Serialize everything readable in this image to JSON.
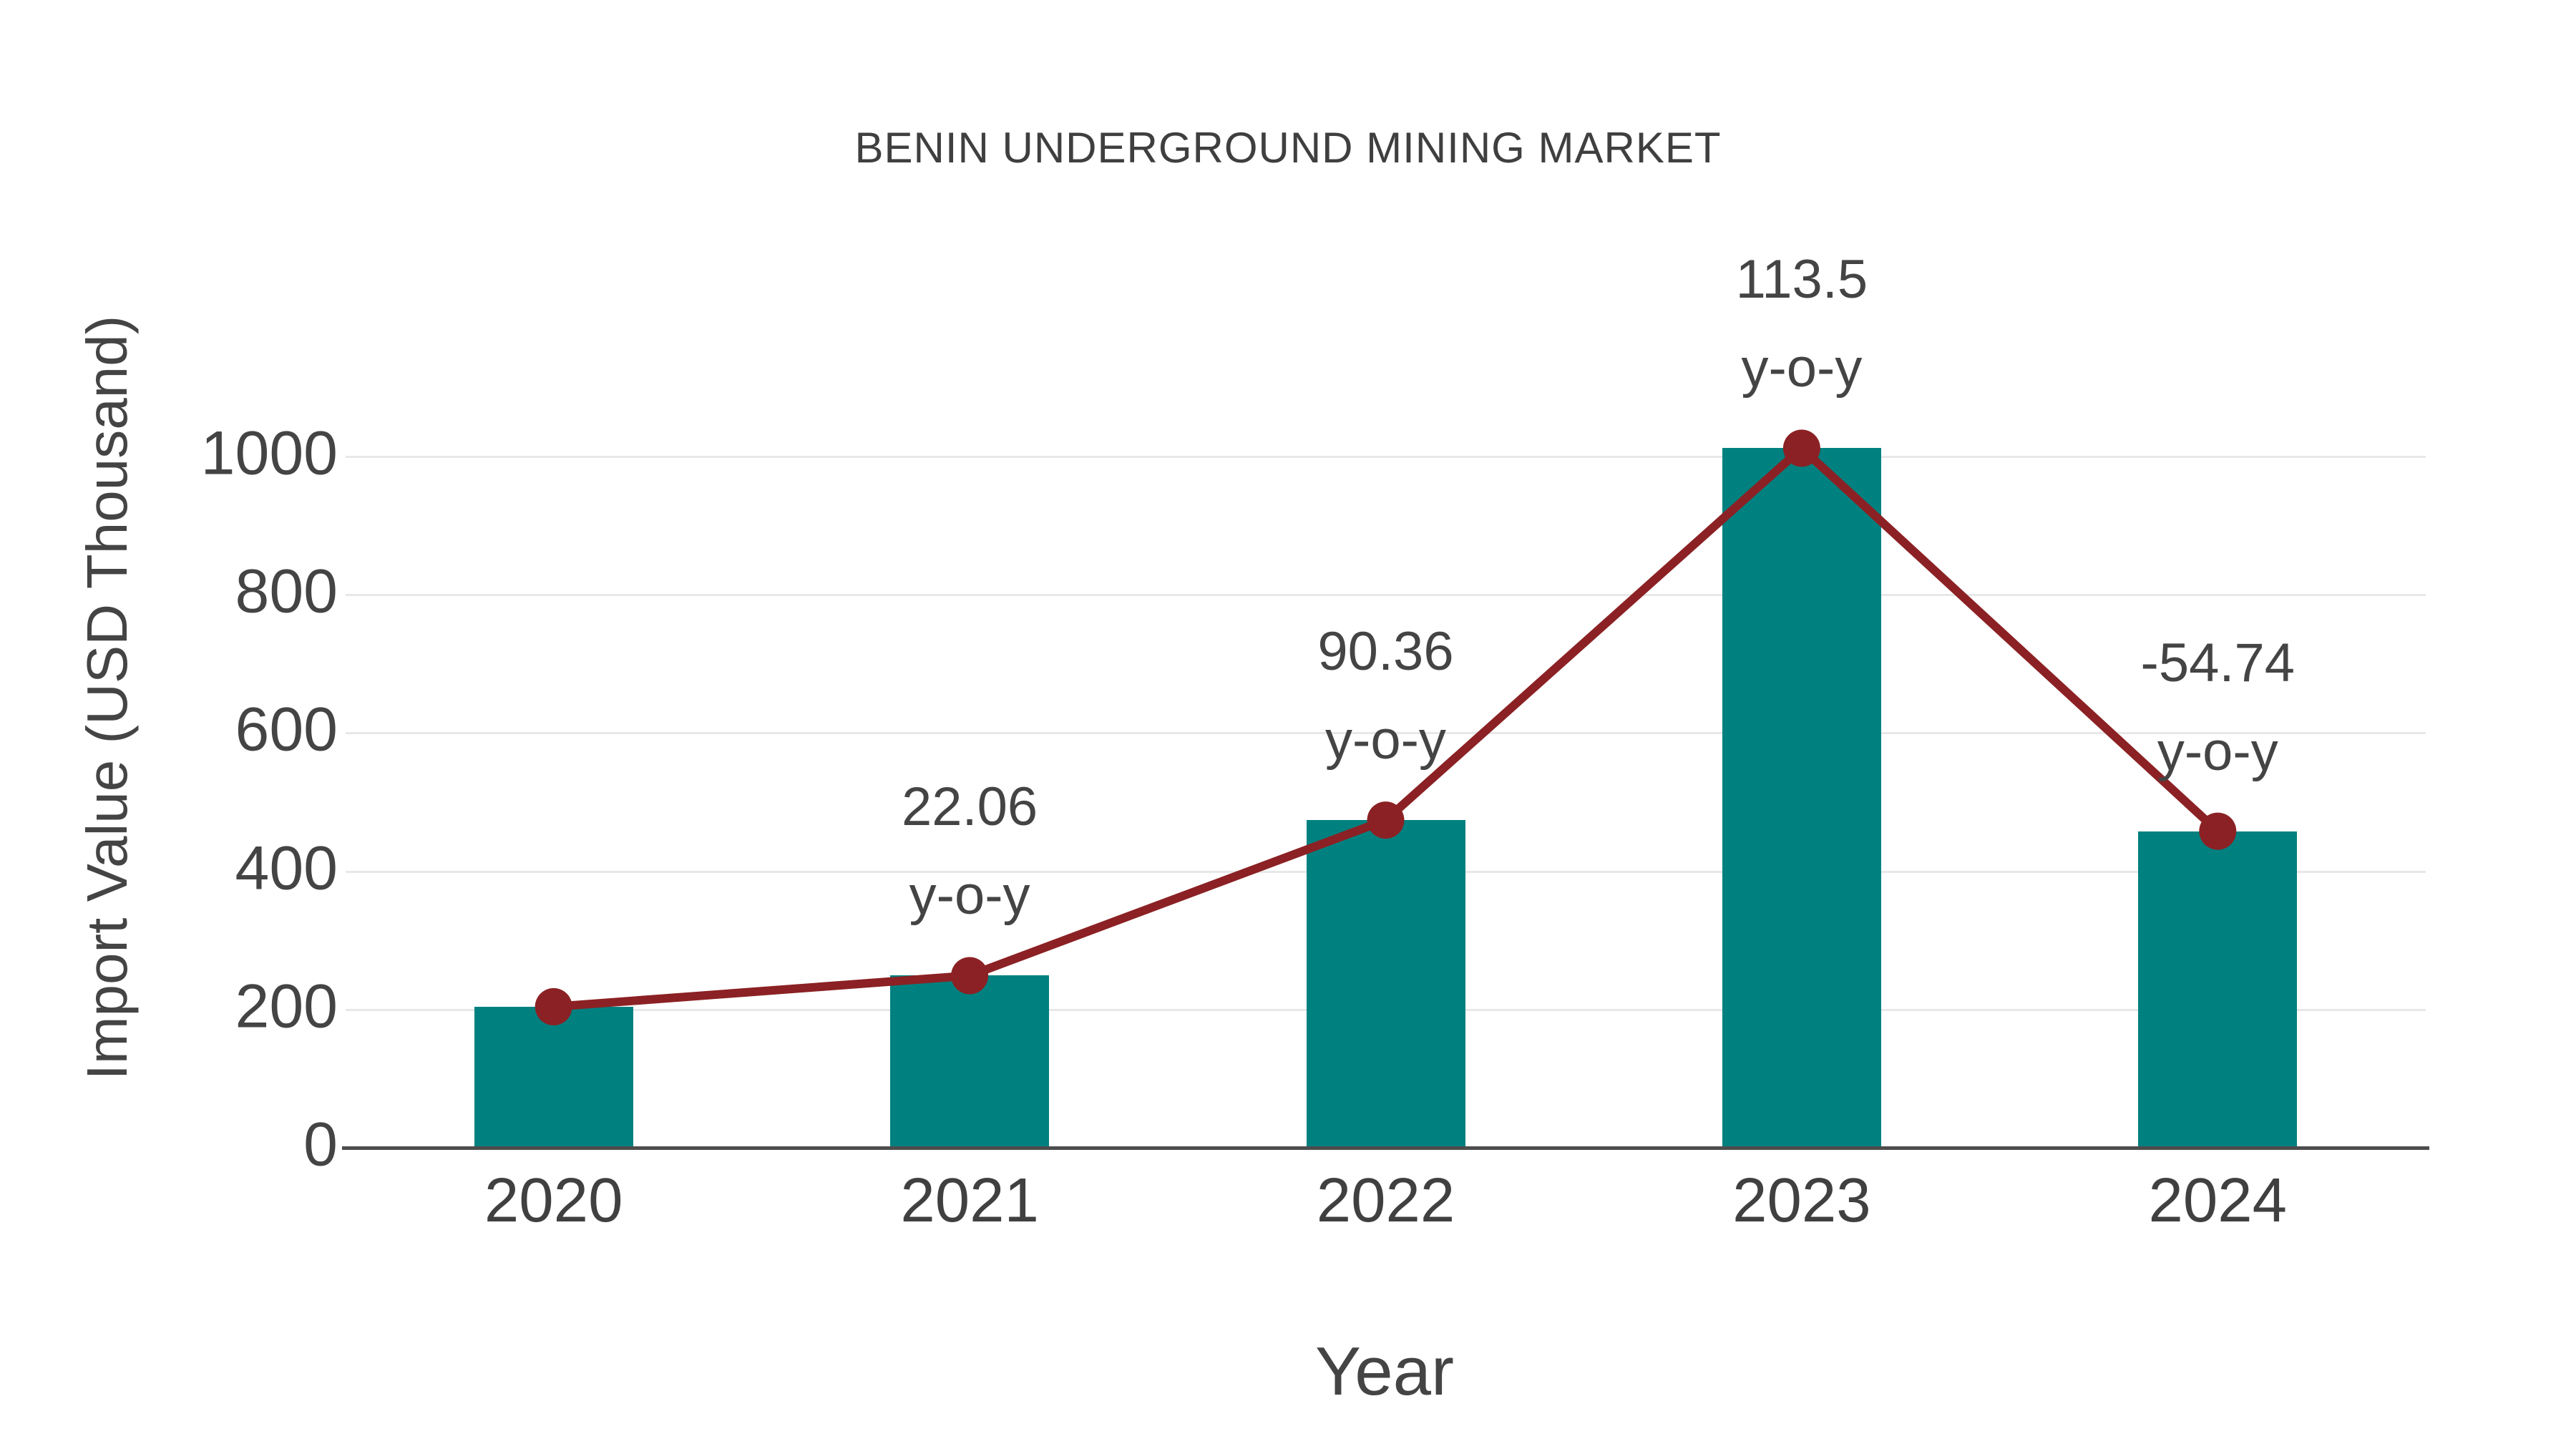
{
  "chart_data": {
    "type": "bar",
    "title": "BENIN UNDERGROUND MINING MARKET",
    "xlabel": "Year",
    "ylabel": "Import Value (USD Thousand)",
    "categories": [
      "2020",
      "2021",
      "2022",
      "2023",
      "2024"
    ],
    "series": [
      {
        "name": "Import Value (USD Thousand)",
        "type": "bar",
        "color": "#008180",
        "values": [
          204,
          249,
          474,
          1012,
          458
        ]
      },
      {
        "name": "y-o-y growth",
        "type": "line",
        "color": "#8B2124",
        "marker_color": "#8B2124",
        "values": [
          204,
          249,
          474,
          1012,
          458
        ],
        "annotations": [
          null,
          "22.06",
          "90.36",
          "113.5",
          "-54.74"
        ],
        "annotation_line2": "y-o-y"
      }
    ],
    "yticks": [
      0,
      200,
      400,
      600,
      800,
      1000
    ],
    "ylim": [
      0,
      1090
    ],
    "grid": true,
    "legend": false,
    "colors": {
      "background": "#ffffff",
      "gridline": "#e8e8e8",
      "axis_line": "#4d4d4d",
      "tick_label": "#444444",
      "title": "#3f3f3f"
    }
  }
}
